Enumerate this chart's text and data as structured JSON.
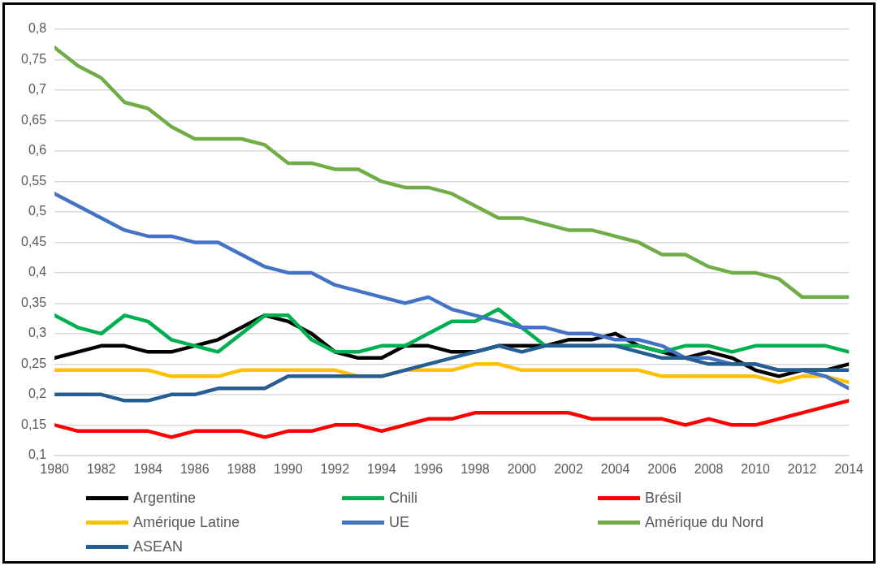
{
  "chart_data": {
    "type": "line",
    "x": [
      1980,
      1981,
      1982,
      1983,
      1984,
      1985,
      1986,
      1987,
      1988,
      1989,
      1990,
      1991,
      1992,
      1993,
      1994,
      1995,
      1996,
      1997,
      1998,
      1999,
      2000,
      2001,
      2002,
      2003,
      2004,
      2005,
      2006,
      2007,
      2008,
      2009,
      2010,
      2011,
      2012,
      2013,
      2014
    ],
    "xlim": [
      1980,
      2014
    ],
    "xticks": [
      1980,
      1982,
      1984,
      1986,
      1988,
      1990,
      1992,
      1994,
      1996,
      1998,
      2000,
      2002,
      2004,
      2006,
      2008,
      2010,
      2012,
      2014
    ],
    "ylim": [
      0.1,
      0.8
    ],
    "yticks": [
      {
        "value": 0.1,
        "label": "0,1"
      },
      {
        "value": 0.15,
        "label": "0,15"
      },
      {
        "value": 0.2,
        "label": "0,2"
      },
      {
        "value": 0.25,
        "label": "0,25"
      },
      {
        "value": 0.3,
        "label": "0,3"
      },
      {
        "value": 0.35,
        "label": "0,35"
      },
      {
        "value": 0.4,
        "label": "0,4"
      },
      {
        "value": 0.45,
        "label": "0,45"
      },
      {
        "value": 0.5,
        "label": "0,5"
      },
      {
        "value": 0.55,
        "label": "0,55"
      },
      {
        "value": 0.6,
        "label": "0,6"
      },
      {
        "value": 0.65,
        "label": "0,65"
      },
      {
        "value": 0.7,
        "label": "0,7"
      },
      {
        "value": 0.75,
        "label": "0,75"
      },
      {
        "value": 0.8,
        "label": "0,8"
      }
    ],
    "grid": "y",
    "legend": "bottom",
    "marker": "none",
    "line_style": "solid",
    "series": [
      {
        "name": "Argentine",
        "color": "#000000",
        "values": [
          0.26,
          0.27,
          0.28,
          0.28,
          0.27,
          0.27,
          0.28,
          0.29,
          0.31,
          0.33,
          0.32,
          0.3,
          0.27,
          0.26,
          0.26,
          0.28,
          0.28,
          0.27,
          0.27,
          0.28,
          0.28,
          0.28,
          0.29,
          0.29,
          0.3,
          0.28,
          0.27,
          0.26,
          0.27,
          0.26,
          0.24,
          0.23,
          0.24,
          0.24,
          0.25
        ]
      },
      {
        "name": "Chili",
        "color": "#00b050",
        "values": [
          0.33,
          0.31,
          0.3,
          0.33,
          0.32,
          0.29,
          0.28,
          0.27,
          0.3,
          0.33,
          0.33,
          0.29,
          0.27,
          0.27,
          0.28,
          0.28,
          0.3,
          0.32,
          0.32,
          0.34,
          0.31,
          0.28,
          0.28,
          0.28,
          0.28,
          0.28,
          0.27,
          0.28,
          0.28,
          0.27,
          0.28,
          0.28,
          0.28,
          0.28,
          0.27
        ]
      },
      {
        "name": "Brésil",
        "color": "#ff0000",
        "values": [
          0.15,
          0.14,
          0.14,
          0.14,
          0.14,
          0.13,
          0.14,
          0.14,
          0.14,
          0.13,
          0.14,
          0.14,
          0.15,
          0.15,
          0.14,
          0.15,
          0.16,
          0.16,
          0.17,
          0.17,
          0.17,
          0.17,
          0.17,
          0.16,
          0.16,
          0.16,
          0.16,
          0.15,
          0.16,
          0.15,
          0.15,
          0.16,
          0.17,
          0.18,
          0.19
        ]
      },
      {
        "name": "Amérique Latine",
        "color": "#ffc000",
        "values": [
          0.24,
          0.24,
          0.24,
          0.24,
          0.24,
          0.23,
          0.23,
          0.23,
          0.24,
          0.24,
          0.24,
          0.24,
          0.24,
          0.23,
          0.23,
          0.24,
          0.24,
          0.24,
          0.25,
          0.25,
          0.24,
          0.24,
          0.24,
          0.24,
          0.24,
          0.24,
          0.23,
          0.23,
          0.23,
          0.23,
          0.23,
          0.22,
          0.23,
          0.23,
          0.22
        ]
      },
      {
        "name": "UE",
        "color": "#4472c4",
        "values": [
          0.53,
          0.51,
          0.49,
          0.47,
          0.46,
          0.46,
          0.45,
          0.45,
          0.43,
          0.41,
          0.4,
          0.4,
          0.38,
          0.37,
          0.36,
          0.35,
          0.36,
          0.34,
          0.33,
          0.32,
          0.31,
          0.31,
          0.3,
          0.3,
          0.29,
          0.29,
          0.28,
          0.26,
          0.26,
          0.25,
          0.25,
          0.24,
          0.24,
          0.23,
          0.21
        ]
      },
      {
        "name": "Amérique du Nord",
        "color": "#70ad47",
        "values": [
          0.77,
          0.74,
          0.72,
          0.68,
          0.67,
          0.64,
          0.62,
          0.62,
          0.62,
          0.61,
          0.58,
          0.58,
          0.57,
          0.57,
          0.55,
          0.54,
          0.54,
          0.53,
          0.51,
          0.49,
          0.49,
          0.48,
          0.47,
          0.47,
          0.46,
          0.45,
          0.43,
          0.43,
          0.41,
          0.4,
          0.4,
          0.39,
          0.36,
          0.36,
          0.36
        ]
      },
      {
        "name": "ASEAN",
        "color": "#255e91",
        "values": [
          0.2,
          0.2,
          0.2,
          0.19,
          0.19,
          0.2,
          0.2,
          0.21,
          0.21,
          0.21,
          0.23,
          0.23,
          0.23,
          0.23,
          0.23,
          0.24,
          0.25,
          0.26,
          0.27,
          0.28,
          0.27,
          0.28,
          0.28,
          0.28,
          0.28,
          0.27,
          0.26,
          0.26,
          0.25,
          0.25,
          0.25,
          0.24,
          0.24,
          0.24,
          0.24
        ]
      }
    ]
  }
}
